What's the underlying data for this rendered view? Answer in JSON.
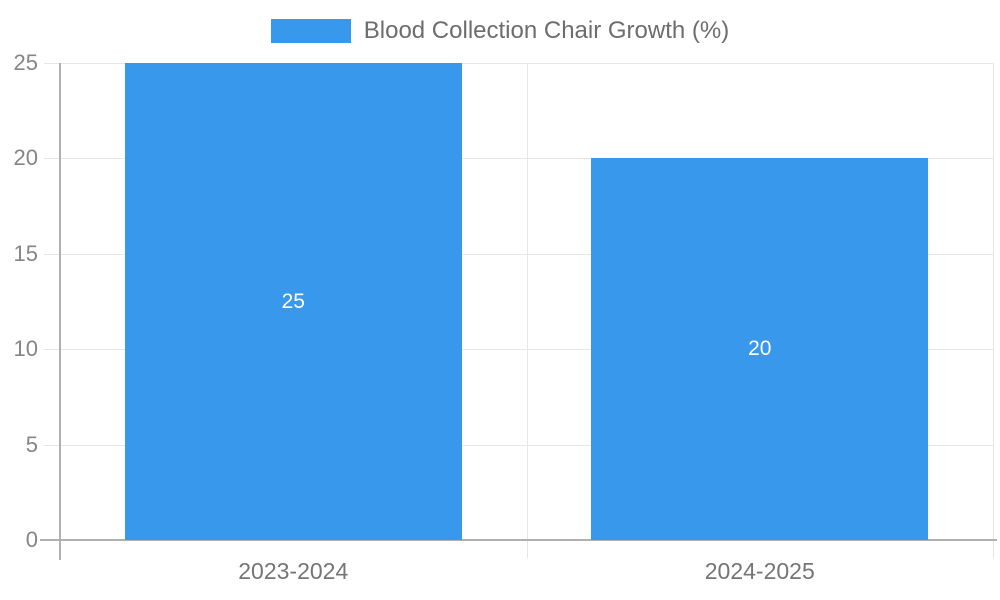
{
  "chart_data": {
    "type": "bar",
    "title": "Blood Collection Chair Growth (%)",
    "categories": [
      "2023-2024",
      "2024-2025"
    ],
    "series": [
      {
        "name": "Blood Collection Chair Growth (%)",
        "values": [
          25,
          20
        ]
      }
    ],
    "bar_value_labels": [
      "25",
      "20"
    ],
    "ylim": [
      0,
      25
    ],
    "yticks": [
      0,
      5,
      10,
      15,
      20,
      25
    ],
    "ytick_labels": [
      "0",
      "5",
      "10",
      "15",
      "20",
      "25"
    ],
    "xlabel": "",
    "ylabel": "",
    "grid": true,
    "legend_position": "top-center",
    "colors": {
      "bar": "#3899ec",
      "grid": "#e6e6e6",
      "axis": "#b0b0b0",
      "tick_text": "#858585",
      "category_text": "#757575",
      "legend_text": "#6d6d6d",
      "bar_label_text": "#ffffff",
      "background": "#ffffff"
    }
  }
}
